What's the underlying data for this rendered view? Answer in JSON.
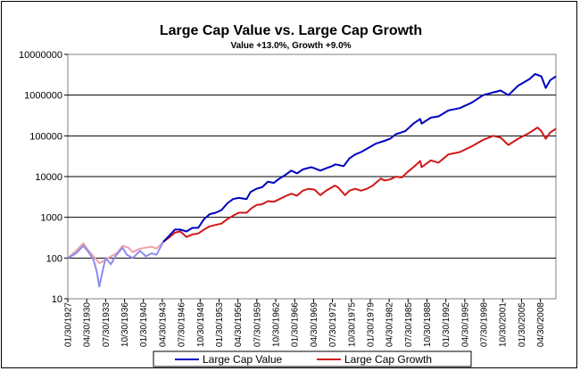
{
  "chart_data": {
    "type": "line",
    "title": "Large Cap Value vs. Large Cap Growth",
    "subtitle": "Value +13.0%, Growth +9.0%",
    "xlabel": "",
    "ylabel": "",
    "y_scale": "log",
    "ylim": [
      10,
      10000000
    ],
    "y_ticks": [
      "10",
      "100",
      "1000",
      "10000",
      "100000",
      "1000000",
      "10000000"
    ],
    "xlim": [
      "01/30/1927",
      "12/30/2010"
    ],
    "x_tick_labels": [
      "01/30/1927",
      "04/30/1930",
      "07/30/1933",
      "10/30/1936",
      "01/30/1940",
      "04/30/1943",
      "07/30/1946",
      "10/30/1949",
      "01/30/1953",
      "04/30/1956",
      "07/30/1959",
      "10/30/1962",
      "01/30/1966",
      "04/30/1969",
      "07/30/1972",
      "10/30/1975",
      "01/30/1979",
      "04/30/1982",
      "07/30/1985",
      "10/30/1988",
      "01/30/1992",
      "04/30/1995",
      "07/30/1998",
      "10/30/2001",
      "01/30/2005",
      "04/30/2008"
    ],
    "grid": "horizontal",
    "legend_position": "bottom",
    "colors": {
      "value_line": "#0000c0",
      "growth_line": "#d01818",
      "early_value_faded": "#8c8cf0",
      "early_growth_faded": "#f0a0a8",
      "gridline": "#000000",
      "plot_border": "#808080"
    },
    "series": [
      {
        "name": "Large Cap Value",
        "x": [
          "1927-01-30",
          "1928-06-30",
          "1929-09-30",
          "1930-06-30",
          "1931-06-30",
          "1932-01-30",
          "1932-06-30",
          "1933-02-28",
          "1933-07-30",
          "1934-06-30",
          "1935-03-30",
          "1936-06-30",
          "1937-03-30",
          "1938-03-30",
          "1939-06-30",
          "1940-06-30",
          "1941-06-30",
          "1942-04-30",
          "1943-06-30",
          "1944-06-30",
          "1945-06-30",
          "1946-05-30",
          "1947-06-30",
          "1948-06-30",
          "1949-06-30",
          "1950-06-30",
          "1951-06-30",
          "1952-06-30",
          "1953-06-30",
          "1954-06-30",
          "1955-06-30",
          "1956-06-30",
          "1957-10-30",
          "1958-06-30",
          "1959-06-30",
          "1960-06-30",
          "1961-06-30",
          "1962-06-30",
          "1963-06-30",
          "1964-06-30",
          "1965-06-30",
          "1966-06-30",
          "1967-06-30",
          "1968-11-30",
          "1969-06-30",
          "1970-06-30",
          "1971-06-30",
          "1972-06-30",
          "1973-01-30",
          "1974-06-30",
          "1975-06-30",
          "1976-06-30",
          "1977-06-30",
          "1978-06-30",
          "1980-01-30",
          "1981-06-30",
          "1982-06-30",
          "1983-06-30",
          "1985-01-30",
          "1986-06-30",
          "1987-08-30",
          "1987-11-30",
          "1989-06-30",
          "1990-10-30",
          "1992-06-30",
          "1994-06-30",
          "1996-06-30",
          "1998-06-30",
          "2000-01-30",
          "2001-06-30",
          "2002-10-30",
          "2004-06-30",
          "2006-06-30",
          "2007-05-30",
          "2008-06-30",
          "2009-03-30",
          "2009-12-30",
          "2010-12-30"
        ],
        "values": [
          100,
          130,
          200,
          150,
          90,
          45,
          20,
          55,
          100,
          70,
          110,
          180,
          120,
          100,
          150,
          110,
          130,
          120,
          250,
          350,
          500,
          500,
          450,
          550,
          550,
          900,
          1200,
          1300,
          1500,
          2200,
          2800,
          3000,
          2800,
          4200,
          5000,
          5500,
          7500,
          7000,
          9000,
          11000,
          14000,
          12000,
          15000,
          17000,
          16000,
          14000,
          16000,
          18000,
          20000,
          18000,
          28000,
          35000,
          40000,
          48000,
          65000,
          75000,
          85000,
          110000,
          130000,
          200000,
          260000,
          200000,
          280000,
          300000,
          420000,
          480000,
          650000,
          1000000,
          1150000,
          1300000,
          1000000,
          1700000,
          2500000,
          3300000,
          2900000,
          1500000,
          2300000,
          2900000
        ]
      },
      {
        "name": "Large Cap Growth",
        "x": [
          "1927-01-30",
          "1928-06-30",
          "1929-09-30",
          "1930-06-30",
          "1931-06-30",
          "1932-06-30",
          "1933-07-30",
          "1934-06-30",
          "1935-06-30",
          "1936-06-30",
          "1937-06-30",
          "1938-03-30",
          "1939-06-30",
          "1940-06-30",
          "1941-06-30",
          "1942-04-30",
          "1943-06-30",
          "1944-06-30",
          "1945-06-30",
          "1946-05-30",
          "1947-06-30",
          "1948-06-30",
          "1949-06-30",
          "1950-06-30",
          "1951-06-30",
          "1952-06-30",
          "1953-06-30",
          "1954-06-30",
          "1955-06-30",
          "1956-06-30",
          "1957-10-30",
          "1958-06-30",
          "1959-06-30",
          "1960-06-30",
          "1961-06-30",
          "1962-06-30",
          "1963-06-30",
          "1964-06-30",
          "1965-06-30",
          "1966-06-30",
          "1967-06-30",
          "1968-06-30",
          "1969-06-30",
          "1970-06-30",
          "1971-06-30",
          "1972-12-30",
          "1973-06-30",
          "1974-09-30",
          "1975-06-30",
          "1976-06-30",
          "1977-06-30",
          "1978-06-30",
          "1979-06-30",
          "1980-11-30",
          "1981-06-30",
          "1982-06-30",
          "1983-06-30",
          "1984-06-30",
          "1985-06-30",
          "1986-06-30",
          "1987-08-30",
          "1987-11-30",
          "1989-06-30",
          "1990-10-30",
          "1992-06-30",
          "1994-06-30",
          "1996-06-30",
          "1998-06-30",
          "2000-03-30",
          "2001-06-30",
          "2002-10-30",
          "2004-06-30",
          "2006-06-30",
          "2007-10-30",
          "2008-06-30",
          "2009-03-30",
          "2009-12-30",
          "2010-12-30"
        ],
        "values": [
          100,
          150,
          230,
          160,
          110,
          75,
          90,
          110,
          130,
          200,
          180,
          140,
          170,
          180,
          190,
          170,
          250,
          320,
          420,
          450,
          330,
          380,
          400,
          500,
          600,
          650,
          700,
          900,
          1100,
          1300,
          1300,
          1600,
          2000,
          2100,
          2500,
          2400,
          2800,
          3300,
          3800,
          3400,
          4500,
          5000,
          4800,
          3500,
          4500,
          6000,
          5500,
          3500,
          4500,
          5000,
          4500,
          5000,
          6000,
          9000,
          8000,
          8500,
          10000,
          9500,
          13000,
          17000,
          24000,
          17000,
          25000,
          22000,
          35000,
          40000,
          55000,
          80000,
          100000,
          90000,
          60000,
          85000,
          120000,
          160000,
          130000,
          85000,
          120000,
          150000
        ]
      }
    ]
  }
}
